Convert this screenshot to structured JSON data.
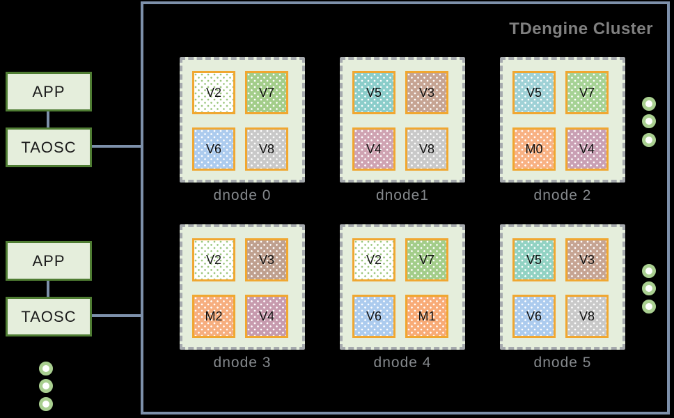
{
  "colors": {
    "background": "#000000",
    "cluster_border": "#7d90aa",
    "connector": "#7d90aa",
    "app_box_fill": "#e5eedc",
    "app_box_border": "#4f7d33",
    "dnode_fill": "#e5eedc",
    "dnode_border": "#a6aaae",
    "vnode_border": "#f0a731",
    "cluster_title_color": "#808080",
    "dnode_label_color": "#85898d",
    "ellipsis_dot_ring": "#a9cf90"
  },
  "cluster": {
    "title": "TDengine Cluster"
  },
  "left_panel": {
    "groups": [
      {
        "app": "APP",
        "taosc": "TAOSC"
      },
      {
        "app": "APP",
        "taosc": "TAOSC"
      }
    ]
  },
  "dnodes": [
    {
      "label": "dnode 0",
      "vnodes": [
        {
          "label": "V2",
          "bg": "#ffffff",
          "dot": "#9cc77f"
        },
        {
          "label": "V7",
          "bg": "#a3cd8a",
          "dot": "#ffffff"
        },
        {
          "label": "V6",
          "bg": "#accbee",
          "dot": "#ffffff"
        },
        {
          "label": "V8",
          "bg": "#c9c9c9",
          "dot": "#ffffff"
        }
      ]
    },
    {
      "label": "dnode1",
      "vnodes": [
        {
          "label": "V5",
          "bg": "#8bcdca",
          "dot": "#ffffff"
        },
        {
          "label": "V3",
          "bg": "#c6a493",
          "dot": "#ffffff"
        },
        {
          "label": "V4",
          "bg": "#cfa3b2",
          "dot": "#ffffff"
        },
        {
          "label": "V8",
          "bg": "#c9c9c9",
          "dot": "#ffffff"
        }
      ]
    },
    {
      "label": "dnode 2",
      "vnodes": [
        {
          "label": "V5",
          "bg": "#9fd1d6",
          "dot": "#ffffff"
        },
        {
          "label": "V7",
          "bg": "#a6d295",
          "dot": "#ffffff"
        },
        {
          "label": "M0",
          "bg": "#f8b183",
          "dot": "#ffffff"
        },
        {
          "label": "V4",
          "bg": "#c9a0b4",
          "dot": "#ffffff"
        }
      ]
    },
    {
      "label": "dnode 3",
      "vnodes": [
        {
          "label": "V2",
          "bg": "#ffffff",
          "dot": "#9cc77f"
        },
        {
          "label": "V3",
          "bg": "#bfa08f",
          "dot": "#ffffff"
        },
        {
          "label": "M2",
          "bg": "#f6ae7f",
          "dot": "#ffffff"
        },
        {
          "label": "V4",
          "bg": "#c79bae",
          "dot": "#ffffff"
        }
      ]
    },
    {
      "label": "dnode 4",
      "vnodes": [
        {
          "label": "V2",
          "bg": "#ffffff",
          "dot": "#9cc77f"
        },
        {
          "label": "V7",
          "bg": "#a3cd8a",
          "dot": "#ffffff"
        },
        {
          "label": "V6",
          "bg": "#accbee",
          "dot": "#ffffff"
        },
        {
          "label": "M1",
          "bg": "#f8ab77",
          "dot": "#ffffff"
        }
      ]
    },
    {
      "label": "dnode 5",
      "vnodes": [
        {
          "label": "V5",
          "bg": "#92d2c3",
          "dot": "#ffffff"
        },
        {
          "label": "V3",
          "bg": "#c6a493",
          "dot": "#ffffff"
        },
        {
          "label": "V6",
          "bg": "#accbee",
          "dot": "#ffffff"
        },
        {
          "label": "V8",
          "bg": "#c9c9c9",
          "dot": "#ffffff"
        }
      ]
    }
  ]
}
